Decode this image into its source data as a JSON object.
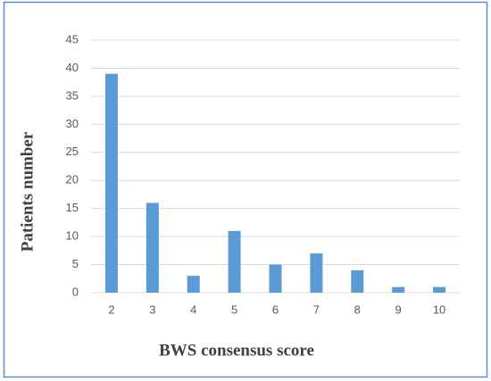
{
  "chart_data": {
    "type": "bar",
    "x_label": "BWS consensus score",
    "y_label": "Patients number",
    "categories": [
      "2",
      "3",
      "4",
      "5",
      "6",
      "7",
      "8",
      "9",
      "10"
    ],
    "values": [
      39,
      16,
      3,
      11,
      5,
      7,
      4,
      1,
      1
    ],
    "color": "#5b9bd5",
    "ylim": [
      0,
      45
    ],
    "yticks": [
      0,
      5,
      10,
      15,
      20,
      25,
      30,
      35,
      40,
      45
    ],
    "grid": true
  }
}
